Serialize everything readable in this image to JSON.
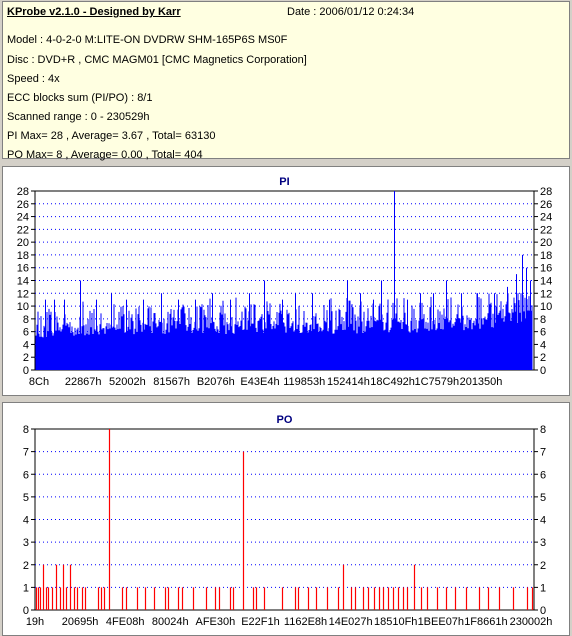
{
  "info": {
    "title": "KProbe v2.1.0 - Designed by Karr",
    "date": "Date : 2006/01/12 0:24:34",
    "lines": [
      "Model : 4-0-2-0 M:LITE-ON DVDRW SHM-165P6S MS0F",
      "Disc : DVD+R , CMC MAGM01 [CMC Magnetics Corporation]",
      "Speed : 4x",
      "ECC blocks sum (PI/PO) : 8/1",
      "Scanned range : 0 - 230529h",
      "PI Max= 28 , Average= 3.67 , Total= 63130",
      "PO Max= 8 , Average= 0.00 , Total= 404"
    ]
  },
  "colors": {
    "pi": "#0000ff",
    "po": "#ff0000",
    "grid": "#0000ff",
    "title": "#000080"
  },
  "chart_data": [
    {
      "type": "bar",
      "title": "PI",
      "ylim": [
        0,
        28
      ],
      "yticks": [
        0,
        2,
        4,
        6,
        8,
        10,
        12,
        14,
        16,
        18,
        20,
        22,
        24,
        26,
        28
      ],
      "xlim": [
        0,
        230529
      ],
      "xtick_labels": [
        "8Ch",
        "22867h",
        "52002h",
        "81567h",
        "B2076h",
        "E43E4h",
        "119853h",
        "152414h",
        "18C492h",
        "1C7579h",
        "201350h"
      ],
      "grid": true,
      "base_profile": [
        [
          0,
          5.5
        ],
        [
          0.04,
          6.5
        ],
        [
          0.3,
          6.8
        ],
        [
          0.6,
          6.9
        ],
        [
          0.8,
          7.2
        ],
        [
          0.92,
          8.0
        ],
        [
          1.0,
          9.0
        ]
      ],
      "spikes": [
        {
          "x": 4500,
          "y": 11
        },
        {
          "x": 9000,
          "y": 11
        },
        {
          "x": 13500,
          "y": 11
        },
        {
          "x": 21000,
          "y": 14
        },
        {
          "x": 28000,
          "y": 11
        },
        {
          "x": 35000,
          "y": 12
        },
        {
          "x": 42000,
          "y": 11
        },
        {
          "x": 50000,
          "y": 11
        },
        {
          "x": 58000,
          "y": 12
        },
        {
          "x": 66000,
          "y": 11
        },
        {
          "x": 74000,
          "y": 11
        },
        {
          "x": 82000,
          "y": 12
        },
        {
          "x": 90000,
          "y": 11
        },
        {
          "x": 99000,
          "y": 12
        },
        {
          "x": 106000,
          "y": 14
        },
        {
          "x": 114000,
          "y": 11
        },
        {
          "x": 120000,
          "y": 12
        },
        {
          "x": 128000,
          "y": 12
        },
        {
          "x": 136000,
          "y": 11
        },
        {
          "x": 144000,
          "y": 14
        },
        {
          "x": 150000,
          "y": 12
        },
        {
          "x": 156000,
          "y": 11
        },
        {
          "x": 160000,
          "y": 14
        },
        {
          "x": 166000,
          "y": 28
        },
        {
          "x": 172000,
          "y": 11
        },
        {
          "x": 178000,
          "y": 12
        },
        {
          "x": 184000,
          "y": 12
        },
        {
          "x": 190000,
          "y": 14
        },
        {
          "x": 197000,
          "y": 12
        },
        {
          "x": 204000,
          "y": 12
        },
        {
          "x": 212000,
          "y": 12
        },
        {
          "x": 218000,
          "y": 13
        },
        {
          "x": 222000,
          "y": 15
        },
        {
          "x": 225000,
          "y": 18
        },
        {
          "x": 227000,
          "y": 16
        },
        {
          "x": 228500,
          "y": 14
        }
      ]
    },
    {
      "type": "bar",
      "title": "PO",
      "ylim": [
        0,
        8
      ],
      "yticks": [
        0,
        1,
        2,
        3,
        4,
        5,
        6,
        7,
        8
      ],
      "xlim": [
        0,
        230529
      ],
      "xtick_labels": [
        "19h",
        "20695h",
        "4FE08h",
        "80024h",
        "AFE30h",
        "E22F1h",
        "1162E8h",
        "14E027h",
        "18510Fh",
        "1BEE07h",
        "1F8661h",
        "230002h"
      ],
      "grid": true,
      "values": [
        [
          500,
          1
        ],
        [
          1500,
          1
        ],
        [
          2500,
          1
        ],
        [
          3500,
          2
        ],
        [
          5000,
          1
        ],
        [
          6000,
          1
        ],
        [
          8000,
          1
        ],
        [
          9500,
          2
        ],
        [
          11500,
          1
        ],
        [
          13000,
          2
        ],
        [
          14500,
          1
        ],
        [
          16000,
          2
        ],
        [
          18000,
          1
        ],
        [
          19500,
          1
        ],
        [
          21500,
          1
        ],
        [
          23000,
          1
        ],
        [
          29000,
          1
        ],
        [
          30500,
          1
        ],
        [
          32000,
          1
        ],
        [
          34000,
          8
        ],
        [
          40000,
          1
        ],
        [
          42000,
          1
        ],
        [
          47000,
          1
        ],
        [
          51000,
          1
        ],
        [
          55000,
          1
        ],
        [
          60000,
          1
        ],
        [
          61500,
          1
        ],
        [
          66000,
          1
        ],
        [
          68000,
          1
        ],
        [
          73000,
          1
        ],
        [
          79000,
          1
        ],
        [
          83000,
          1
        ],
        [
          85000,
          1
        ],
        [
          90000,
          1
        ],
        [
          91500,
          1
        ],
        [
          96000,
          7
        ],
        [
          100500,
          1
        ],
        [
          102000,
          1
        ],
        [
          106000,
          1
        ],
        [
          114000,
          1
        ],
        [
          120000,
          1
        ],
        [
          121500,
          1
        ],
        [
          126000,
          1
        ],
        [
          130000,
          1
        ],
        [
          135000,
          1
        ],
        [
          140000,
          1
        ],
        [
          142500,
          2
        ],
        [
          146000,
          1
        ],
        [
          148000,
          1
        ],
        [
          151500,
          1
        ],
        [
          154000,
          1
        ],
        [
          156500,
          1
        ],
        [
          159000,
          1
        ],
        [
          161000,
          1
        ],
        [
          163000,
          1
        ],
        [
          165500,
          1
        ],
        [
          167500,
          1
        ],
        [
          170000,
          1
        ],
        [
          172000,
          1
        ],
        [
          175000,
          2
        ],
        [
          178500,
          1
        ],
        [
          181000,
          1
        ],
        [
          185500,
          1
        ],
        [
          190000,
          1
        ],
        [
          194000,
          1
        ],
        [
          199000,
          1
        ],
        [
          205000,
          1
        ],
        [
          209500,
          1
        ],
        [
          214500,
          1
        ],
        [
          221000,
          1
        ],
        [
          227500,
          1
        ],
        [
          229500,
          1
        ]
      ]
    }
  ]
}
